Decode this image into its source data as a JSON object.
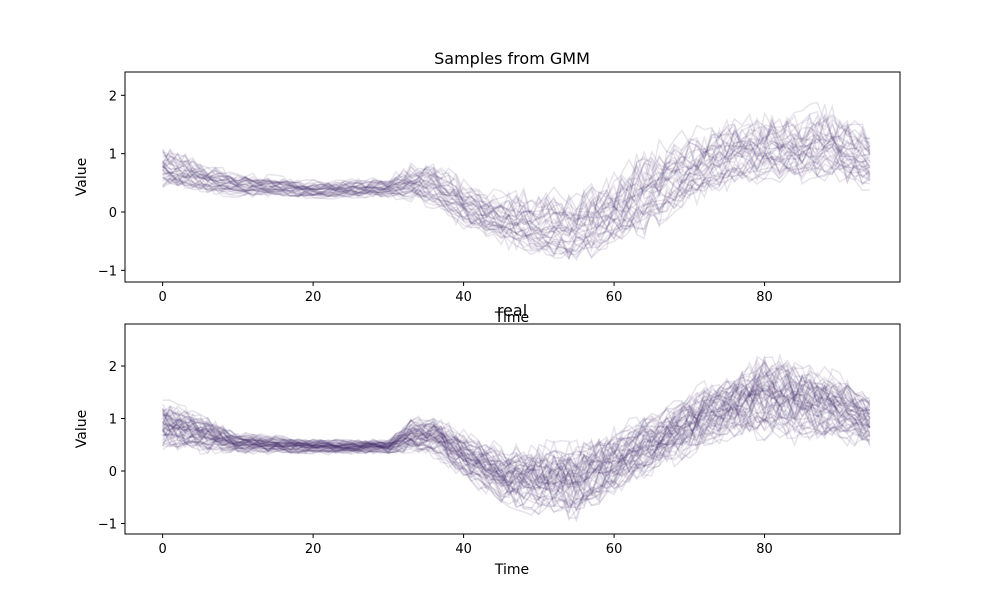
{
  "chart_data": [
    {
      "type": "line",
      "title": "Samples from GMM",
      "xlabel": "Time",
      "ylabel": "Value",
      "xlim": [
        -5,
        98
      ],
      "ylim": [
        -1.2,
        2.4
      ],
      "x_ticks": [
        0,
        20,
        40,
        60,
        80
      ],
      "y_ticks": [
        -1,
        0,
        1,
        2
      ],
      "x_tick_labels": [
        "0",
        "20",
        "40",
        "60",
        "80"
      ],
      "y_tick_labels": [
        "−1",
        "0",
        "1",
        "2"
      ],
      "x": [
        0,
        94
      ],
      "series_color": "#3b1f66",
      "series_count": 40,
      "profile": {
        "x": [
          0,
          5,
          10,
          20,
          30,
          33,
          36,
          40,
          45,
          50,
          55,
          60,
          65,
          70,
          75,
          80,
          85,
          88,
          94
        ],
        "center": [
          0.65,
          0.5,
          0.45,
          0.4,
          0.42,
          0.5,
          0.35,
          0.1,
          -0.2,
          -0.4,
          -0.45,
          -0.25,
          0.2,
          0.6,
          0.9,
          1.0,
          0.95,
          1.1,
          0.75
        ],
        "lower": [
          0.35,
          0.28,
          0.25,
          0.22,
          0.22,
          0.15,
          0.05,
          -0.3,
          -0.6,
          -0.85,
          -0.95,
          -0.7,
          -0.4,
          0.0,
          0.35,
          0.45,
          0.45,
          0.4,
          0.35
        ],
        "upper": [
          1.3,
          1.0,
          0.75,
          0.6,
          0.65,
          0.95,
          1.0,
          0.7,
          0.5,
          0.55,
          0.6,
          0.9,
          1.4,
          1.6,
          1.8,
          1.9,
          1.9,
          2.2,
          1.6
        ]
      },
      "grid": false,
      "legend": "none"
    },
    {
      "type": "line",
      "title": "real",
      "xlabel": "Time",
      "ylabel": "Value",
      "xlim": [
        -5,
        98
      ],
      "ylim": [
        -1.2,
        2.8
      ],
      "x_ticks": [
        0,
        20,
        40,
        60,
        80
      ],
      "y_ticks": [
        -1,
        0,
        1,
        2
      ],
      "x_tick_labels": [
        "0",
        "20",
        "40",
        "60",
        "80"
      ],
      "y_tick_labels": [
        "−1",
        "0",
        "1",
        "2"
      ],
      "x": [
        0,
        94
      ],
      "series_color": "#3b1f66",
      "series_count": 60,
      "profile": {
        "x": [
          0,
          5,
          10,
          20,
          30,
          33,
          36,
          40,
          45,
          50,
          55,
          60,
          65,
          70,
          75,
          80,
          85,
          88,
          94
        ],
        "center": [
          0.7,
          0.55,
          0.45,
          0.4,
          0.4,
          0.5,
          0.45,
          0.2,
          -0.2,
          -0.45,
          -0.4,
          -0.1,
          0.3,
          0.7,
          1.0,
          1.05,
          0.95,
          0.9,
          0.8
        ],
        "lower": [
          0.35,
          0.3,
          0.3,
          0.3,
          0.3,
          0.3,
          0.2,
          -0.2,
          -0.7,
          -0.95,
          -1.0,
          -0.6,
          -0.2,
          0.2,
          0.5,
          0.5,
          0.45,
          0.45,
          0.4
        ],
        "upper": [
          1.5,
          1.2,
          0.8,
          0.65,
          0.65,
          1.1,
          1.2,
          0.9,
          0.6,
          0.7,
          0.8,
          1.0,
          1.3,
          1.7,
          2.0,
          2.5,
          2.3,
          2.2,
          1.6
        ]
      },
      "grid": false,
      "legend": "none"
    }
  ]
}
